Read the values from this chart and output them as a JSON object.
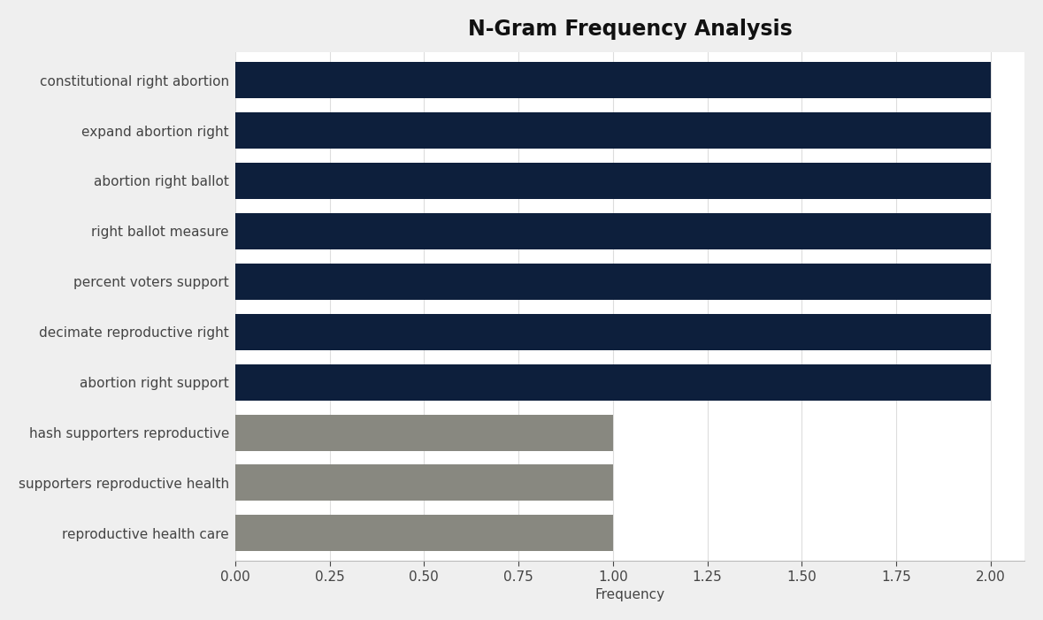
{
  "title": "N-Gram Frequency Analysis",
  "xlabel": "Frequency",
  "categories": [
    "reproductive health care",
    "supporters reproductive health",
    "hash supporters reproductive",
    "abortion right support",
    "decimate reproductive right",
    "percent voters support",
    "right ballot measure",
    "abortion right ballot",
    "expand abortion right",
    "constitutional right abortion"
  ],
  "values": [
    1.0,
    1.0,
    1.0,
    2.0,
    2.0,
    2.0,
    2.0,
    2.0,
    2.0,
    2.0
  ],
  "bar_colors": [
    "#888880",
    "#888880",
    "#888880",
    "#0d1f3c",
    "#0d1f3c",
    "#0d1f3c",
    "#0d1f3c",
    "#0d1f3c",
    "#0d1f3c",
    "#0d1f3c"
  ],
  "xlim": [
    0,
    2.09
  ],
  "xticks": [
    0.0,
    0.25,
    0.5,
    0.75,
    1.0,
    1.25,
    1.5,
    1.75,
    2.0
  ],
  "xtick_labels": [
    "0.00",
    "0.25",
    "0.50",
    "0.75",
    "1.00",
    "1.25",
    "1.50",
    "1.75",
    "2.00"
  ],
  "figure_background_color": "#efefef",
  "plot_background_color": "#ffffff",
  "title_fontsize": 17,
  "label_fontsize": 11,
  "tick_fontsize": 11,
  "bar_height": 0.72
}
